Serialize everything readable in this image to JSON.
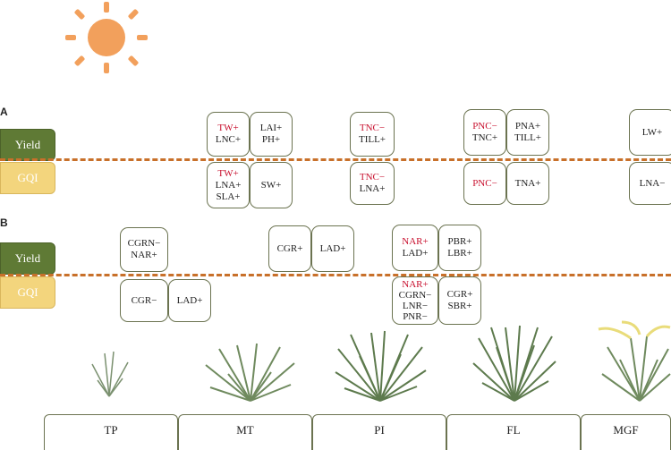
{
  "panels": {
    "A": {
      "letter": "A",
      "yield": "Yield",
      "gqi": "GQI"
    },
    "B": {
      "letter": "B",
      "yield": "Yield",
      "gqi": "GQI"
    }
  },
  "a_boxes": {
    "b1": {
      "l1": "TW+",
      "l2": "LNC+"
    },
    "b2": {
      "l1": "LAI+",
      "l2": "PH+"
    },
    "b3": {
      "l1": "TW+",
      "l2": "LNA+",
      "l3": "SLA+"
    },
    "b4": {
      "l1": "SW+"
    },
    "b5": {
      "l1": "TNC−",
      "l2": "TILL+"
    },
    "b6": {
      "l1": "TNC−",
      "l2": "LNA+"
    },
    "b7": {
      "l1": "PNC−",
      "l2": "TNC+"
    },
    "b8": {
      "l1": "PNA+",
      "l2": "TILL+"
    },
    "b9": {
      "l1": "PNC−"
    },
    "b10": {
      "l1": "TNA+"
    },
    "b11": {
      "l1": "LW+"
    },
    "b12": {
      "l1": "LNA−"
    }
  },
  "b_boxes": {
    "c1": {
      "l1": "CGRN−",
      "l2": "NAR+"
    },
    "c2": {
      "l1": "CGR−"
    },
    "c3": {
      "l1": "LAD+"
    },
    "c4": {
      "l1": "CGR+"
    },
    "c5": {
      "l1": "LAD+"
    },
    "c6": {
      "l1": "NAR+",
      "l2": "LAD+"
    },
    "c7": {
      "l1": "PBR+",
      "l2": "LBR+"
    },
    "c8": {
      "l1": "NAR+",
      "l2": "CGRN−",
      "l3": "LNR−",
      "l4": "PNR−"
    },
    "c9": {
      "l1": "CGR+",
      "l2": "SBR+"
    }
  },
  "stages": [
    "TP",
    "MT",
    "PI",
    "FL",
    "MGF"
  ],
  "colors": {
    "sun": "#f2a05c",
    "dash": "#c8702a",
    "yield": "#5f7a35",
    "gqi": "#f3d57d",
    "red_text": "#c8102e",
    "plant": "#6f8a5e",
    "panicle": "#e9dc7a"
  },
  "icons": {
    "sun": "sun-icon",
    "plants": "rice-plant-icon"
  }
}
